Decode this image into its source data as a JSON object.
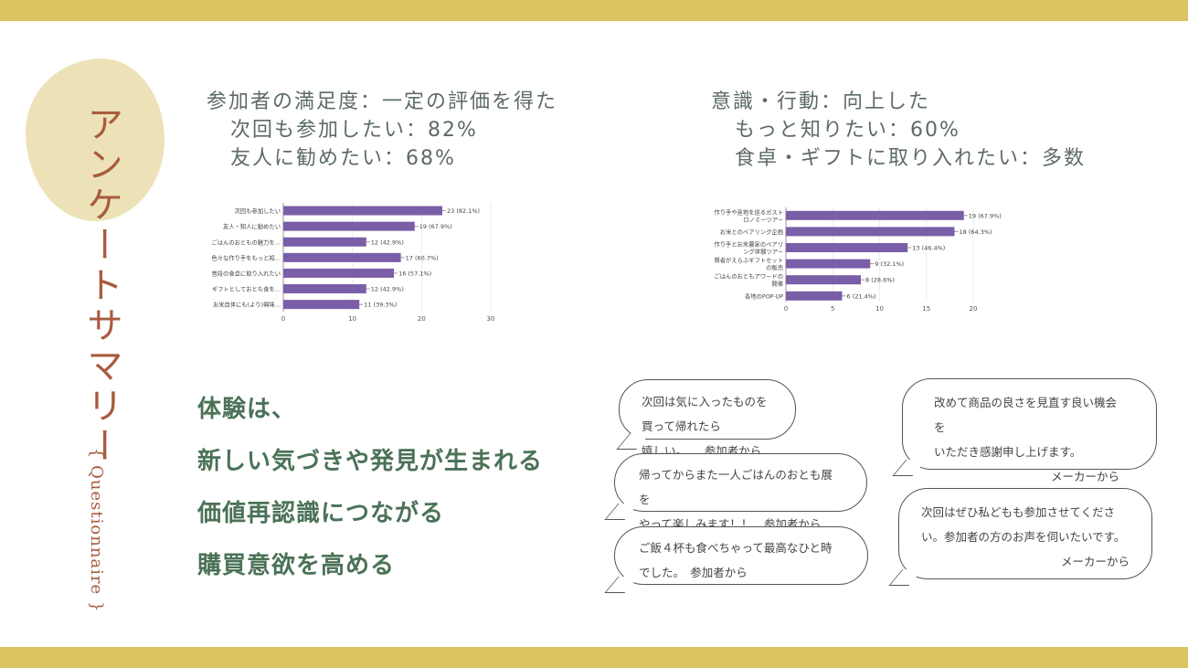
{
  "title": "アンケートサマリー",
  "subtitle": "{ Questionnaire }",
  "left_heading": {
    "title": "参加者の満足度：一定の評価を得た",
    "lines": [
      "次回も参加したい：82%",
      "友人に勧めたい：68%"
    ]
  },
  "right_heading": {
    "title": "意識・行動：向上した",
    "lines": [
      "もっと知りたい：60%",
      "食卓・ギフトに取り入れたい：多数"
    ]
  },
  "chart_data": [
    {
      "type": "bar",
      "orientation": "horizontal",
      "xlim": [
        0,
        30
      ],
      "ticks": [
        0,
        10,
        20,
        30
      ],
      "bar_color": "#7a5ea8",
      "categories": [
        "次回も参加したい",
        "友人・知人に勧めたい",
        "ごはんのおともの魅力を…",
        "色々な作り手をもっと知…",
        "普段の食卓に取り入れたい",
        "ギフトとしておとも食を…",
        "お米自体にも(より)興味…"
      ],
      "values": [
        23,
        19,
        12,
        17,
        16,
        12,
        11
      ],
      "labels": [
        "23 (82.1%)",
        "19 (67.9%)",
        "12 (42.9%)",
        "17 (60.7%)",
        "16 (57.1%)",
        "12 (42.9%)",
        "11 (39.3%)"
      ]
    },
    {
      "type": "bar",
      "orientation": "horizontal",
      "xlim": [
        0,
        20
      ],
      "ticks": [
        0,
        5,
        10,
        15,
        20
      ],
      "bar_color": "#7a5ea8",
      "categories": [
        [
          "作り手や産地を巡るガスト",
          "ロノミーツアー"
        ],
        [
          "お米とのペアリング企画"
        ],
        [
          "作り手とお米農家のペアリ",
          "ング体験ツアー"
        ],
        [
          "賢者がえらぶギフトセット",
          "の販売"
        ],
        [
          "ごはんのおともアワードの",
          "開催"
        ],
        [
          "各地のPOP-UP"
        ]
      ],
      "values": [
        19,
        18,
        13,
        9,
        8,
        6
      ],
      "labels": [
        "19 (67.9%)",
        "18 (64.3%)",
        "13 (46.4%)",
        "9 (32.1%)",
        "8 (28.6%)",
        "6 (21.4%)"
      ]
    }
  ],
  "message": [
    "体験は、",
    "新しい気づきや発見が生まれる",
    "価値再認識につながる",
    "購買意欲を高める"
  ],
  "comments": [
    {
      "lines": [
        "次回は気に入ったものを買って帰れたら",
        "嬉しい。　　参加者から"
      ]
    },
    {
      "lines": [
        "帰ってからまた一人ごはんのおとも展を",
        "やって楽しみます！！　参加者から"
      ]
    },
    {
      "lines": [
        "ご飯４杯も食べちゃって最高なひと時",
        "でした。　参加者から"
      ]
    },
    {
      "lines": [
        "改めて商品の良さを見直す良い機会を",
        "いただき感謝申し上げます。"
      ],
      "from": "メーカーから"
    },
    {
      "lines": [
        "次回はぜひ私どもも参加させてくださ",
        "い。参加者の方のお声を伺いたいです。"
      ],
      "from": "メーカーから"
    }
  ]
}
